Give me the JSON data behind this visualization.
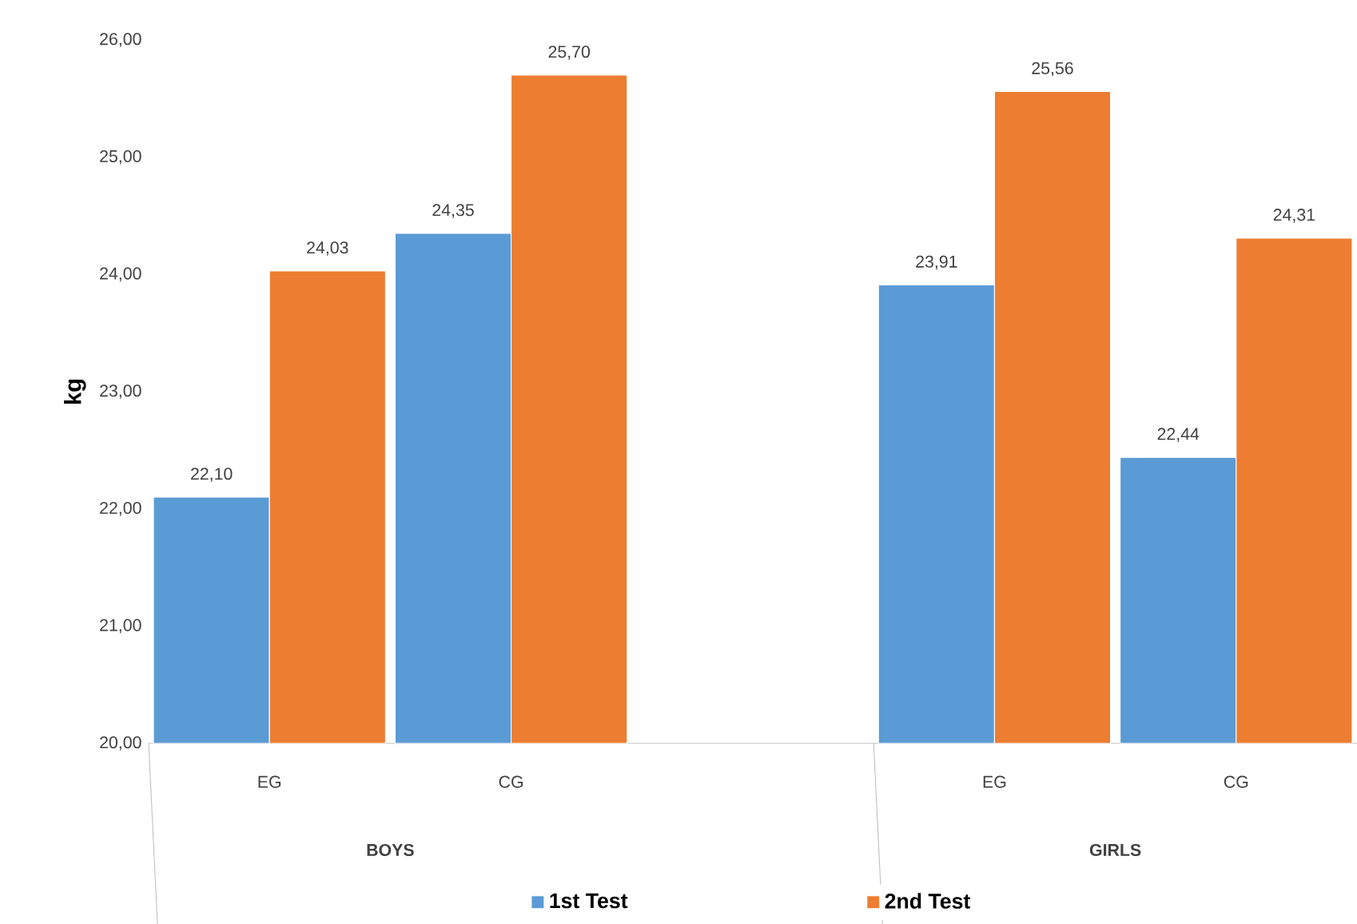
{
  "chart_data": {
    "type": "bar",
    "ylabel": "kg",
    "categories": [
      "EG",
      "CG",
      null,
      "EG",
      "CG"
    ],
    "series": [
      {
        "name": "1st Test",
        "color": "#5b9bd5",
        "values": [
          22.1,
          24.35,
          null,
          23.91,
          22.44
        ],
        "value_labels": [
          "22,10",
          "24,35",
          null,
          "23,91",
          "22,44"
        ]
      },
      {
        "name": "2nd Test",
        "color": "#ed7d31",
        "values": [
          24.03,
          25.7,
          null,
          25.56,
          24.31
        ],
        "value_labels": [
          "24,03",
          "25,70",
          null,
          "25,56",
          "24,31"
        ]
      }
    ],
    "ylim": [
      20,
      26
    ],
    "yticks": [
      {
        "value": 20,
        "label": "20,00"
      },
      {
        "value": 21,
        "label": "21,00"
      },
      {
        "value": 22,
        "label": "22,00"
      },
      {
        "value": 23,
        "label": "23,00"
      },
      {
        "value": 24,
        "label": "24,00"
      },
      {
        "value": 25,
        "label": "25,00"
      },
      {
        "value": 26,
        "label": "26,00"
      }
    ],
    "annotations": [
      "BOYS",
      "GIRLS"
    ],
    "legend": "bottom",
    "grid": false
  }
}
